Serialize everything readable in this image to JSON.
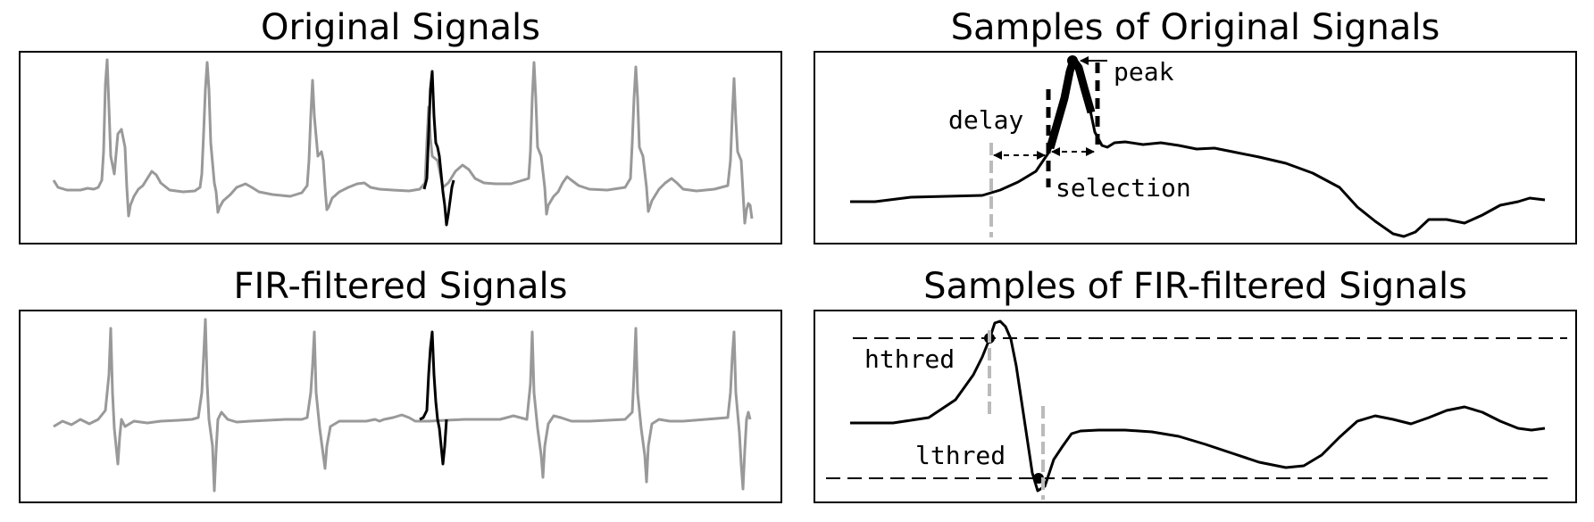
{
  "titles": {
    "original": "Original Signals",
    "samples_original": "Samples of Original Signals",
    "fir": "FIR-filtered Signals",
    "samples_fir": "Samples of FIR-filtered Signals"
  },
  "annotations": {
    "peak": "peak",
    "delay": "delay",
    "selection": "selection",
    "hthred": "hthred",
    "lthred": "lthred"
  },
  "colors": {
    "signal": "#999999",
    "highlight": "#000000",
    "marker_line": "#bbbbbb",
    "frame": "#000000"
  }
}
